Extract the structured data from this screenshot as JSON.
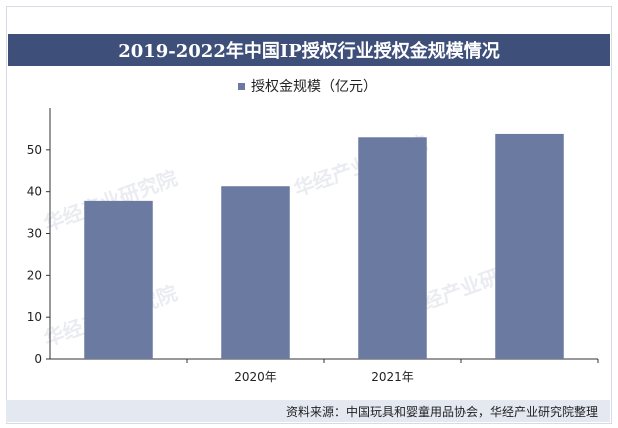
{
  "header": {
    "title": "2019-2022年中国IP授权行业授权金规模情况"
  },
  "footer": {
    "source": "资料来源：中国玩具和婴童用品协会，华经产业研究院整理"
  },
  "watermark": {
    "text": "华经产业研究院"
  },
  "colors": {
    "bar": "#6a7aa0",
    "title_bg": "#3e4f7a",
    "footer_bg": "#e3e8f1"
  },
  "chart_data": {
    "type": "bar",
    "title": "2019-2022年中国IP授权行业授权金规模情况",
    "categories": [
      "",
      "2020年",
      "2021年",
      ""
    ],
    "series": [
      {
        "name": "授权金规模（亿元）",
        "values": [
          37.8,
          41.3,
          53.0,
          53.8
        ]
      }
    ],
    "ylim": [
      0,
      60
    ],
    "yticks": [
      0,
      10,
      20,
      30,
      40,
      50
    ],
    "xlabel": "",
    "ylabel": "",
    "grid": false,
    "legend": "top-center"
  }
}
